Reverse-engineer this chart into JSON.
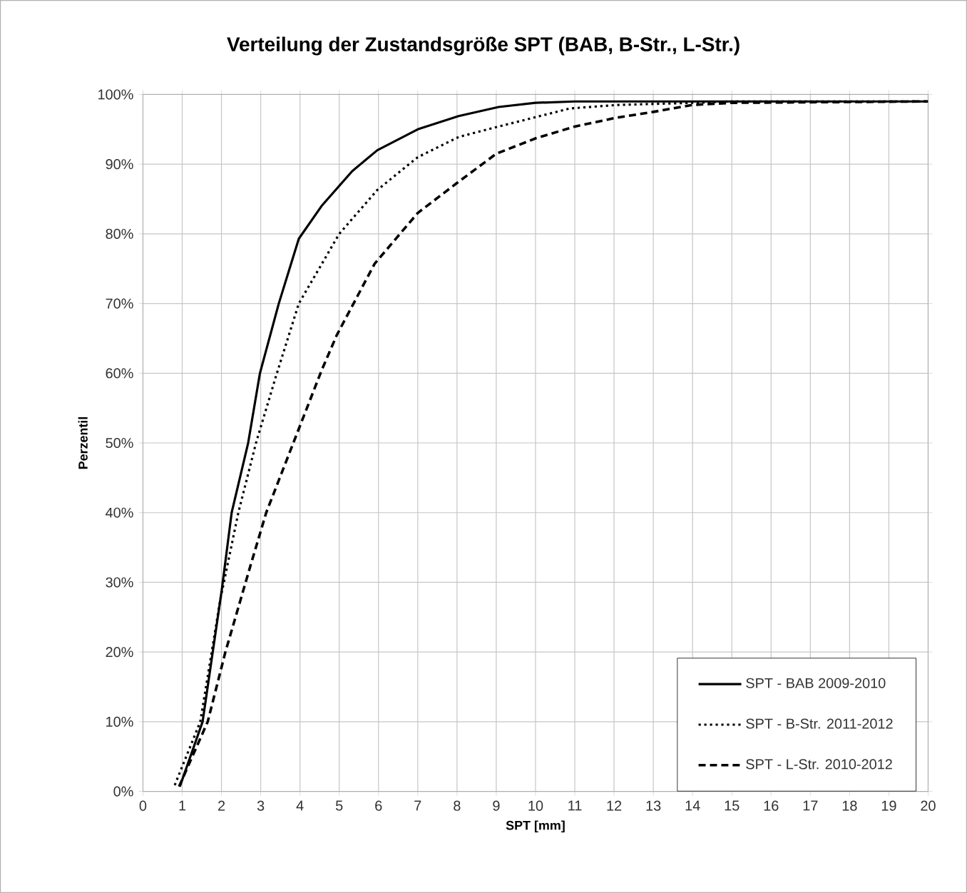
{
  "chart_data": {
    "type": "line",
    "title": "Verteilung der Zustandsgröße SPT (BAB, B-Str., L-Str.)",
    "xlabel": "SPT [mm]",
    "ylabel": "Perzentil",
    "xlim": [
      0,
      20
    ],
    "xticks": [
      0,
      1,
      2,
      3,
      4,
      5,
      6,
      7,
      8,
      9,
      10,
      11,
      12,
      13,
      14,
      15,
      16,
      17,
      18,
      19,
      20
    ],
    "ylim": [
      0,
      100
    ],
    "yticks": [
      {
        "value": 0,
        "label": "0%"
      },
      {
        "value": 10,
        "label": "10%"
      },
      {
        "value": 20,
        "label": "20%"
      },
      {
        "value": 30,
        "label": "30%"
      },
      {
        "value": 40,
        "label": "40%"
      },
      {
        "value": 50,
        "label": "50%"
      },
      {
        "value": 60,
        "label": "60%"
      },
      {
        "value": 70,
        "label": "70%"
      },
      {
        "value": 80,
        "label": "80%"
      },
      {
        "value": 90,
        "label": "90%"
      },
      {
        "value": 100,
        "label": "100%"
      }
    ],
    "grid": true,
    "legend": "bottom right",
    "marker": "none",
    "series": [
      {
        "name": "SPT - BAB 2009-2010",
        "color": "#000000",
        "line_style": "solid",
        "x": [
          0.94,
          1.52,
          2.01,
          2.26,
          2.68,
          2.98,
          3.46,
          3.97,
          4.55,
          5.33,
          5.97,
          7,
          8.04,
          9.06,
          10,
          11,
          15,
          20
        ],
        "values": [
          0.7,
          10,
          29,
          40,
          50,
          60,
          70,
          79.3,
          84,
          89,
          92,
          95,
          96.9,
          98.2,
          98.8,
          99,
          99,
          99
        ]
      },
      {
        "name": "SPT - B-Str. 2011-2012",
        "color": "#000000",
        "line_style": "dotted",
        "x": [
          0.81,
          1.46,
          1.97,
          2.43,
          2.88,
          3.39,
          3.97,
          5,
          5.97,
          7,
          8.04,
          9.06,
          10.88,
          12.1,
          14,
          15,
          20
        ],
        "values": [
          0.9,
          10,
          27.5,
          40,
          50,
          59.6,
          70,
          80,
          86.3,
          91,
          93.9,
          95.4,
          98,
          98.5,
          98.8,
          99,
          99
        ]
      },
      {
        "name": "SPT - L-Str. 2010-2012",
        "color": "#000000",
        "line_style": "dashed",
        "x": [
          0.92,
          1.65,
          2.1,
          2.75,
          3.14,
          3.9,
          4.55,
          4.94,
          5.9,
          7,
          8,
          9,
          10,
          11,
          12,
          13,
          14,
          15,
          20
        ],
        "values": [
          0.7,
          10,
          20,
          32.6,
          40,
          51,
          60.4,
          65.5,
          75.7,
          83,
          87.3,
          91.5,
          93.7,
          95.4,
          96.6,
          97.5,
          98.5,
          98.8,
          99
        ]
      }
    ]
  }
}
